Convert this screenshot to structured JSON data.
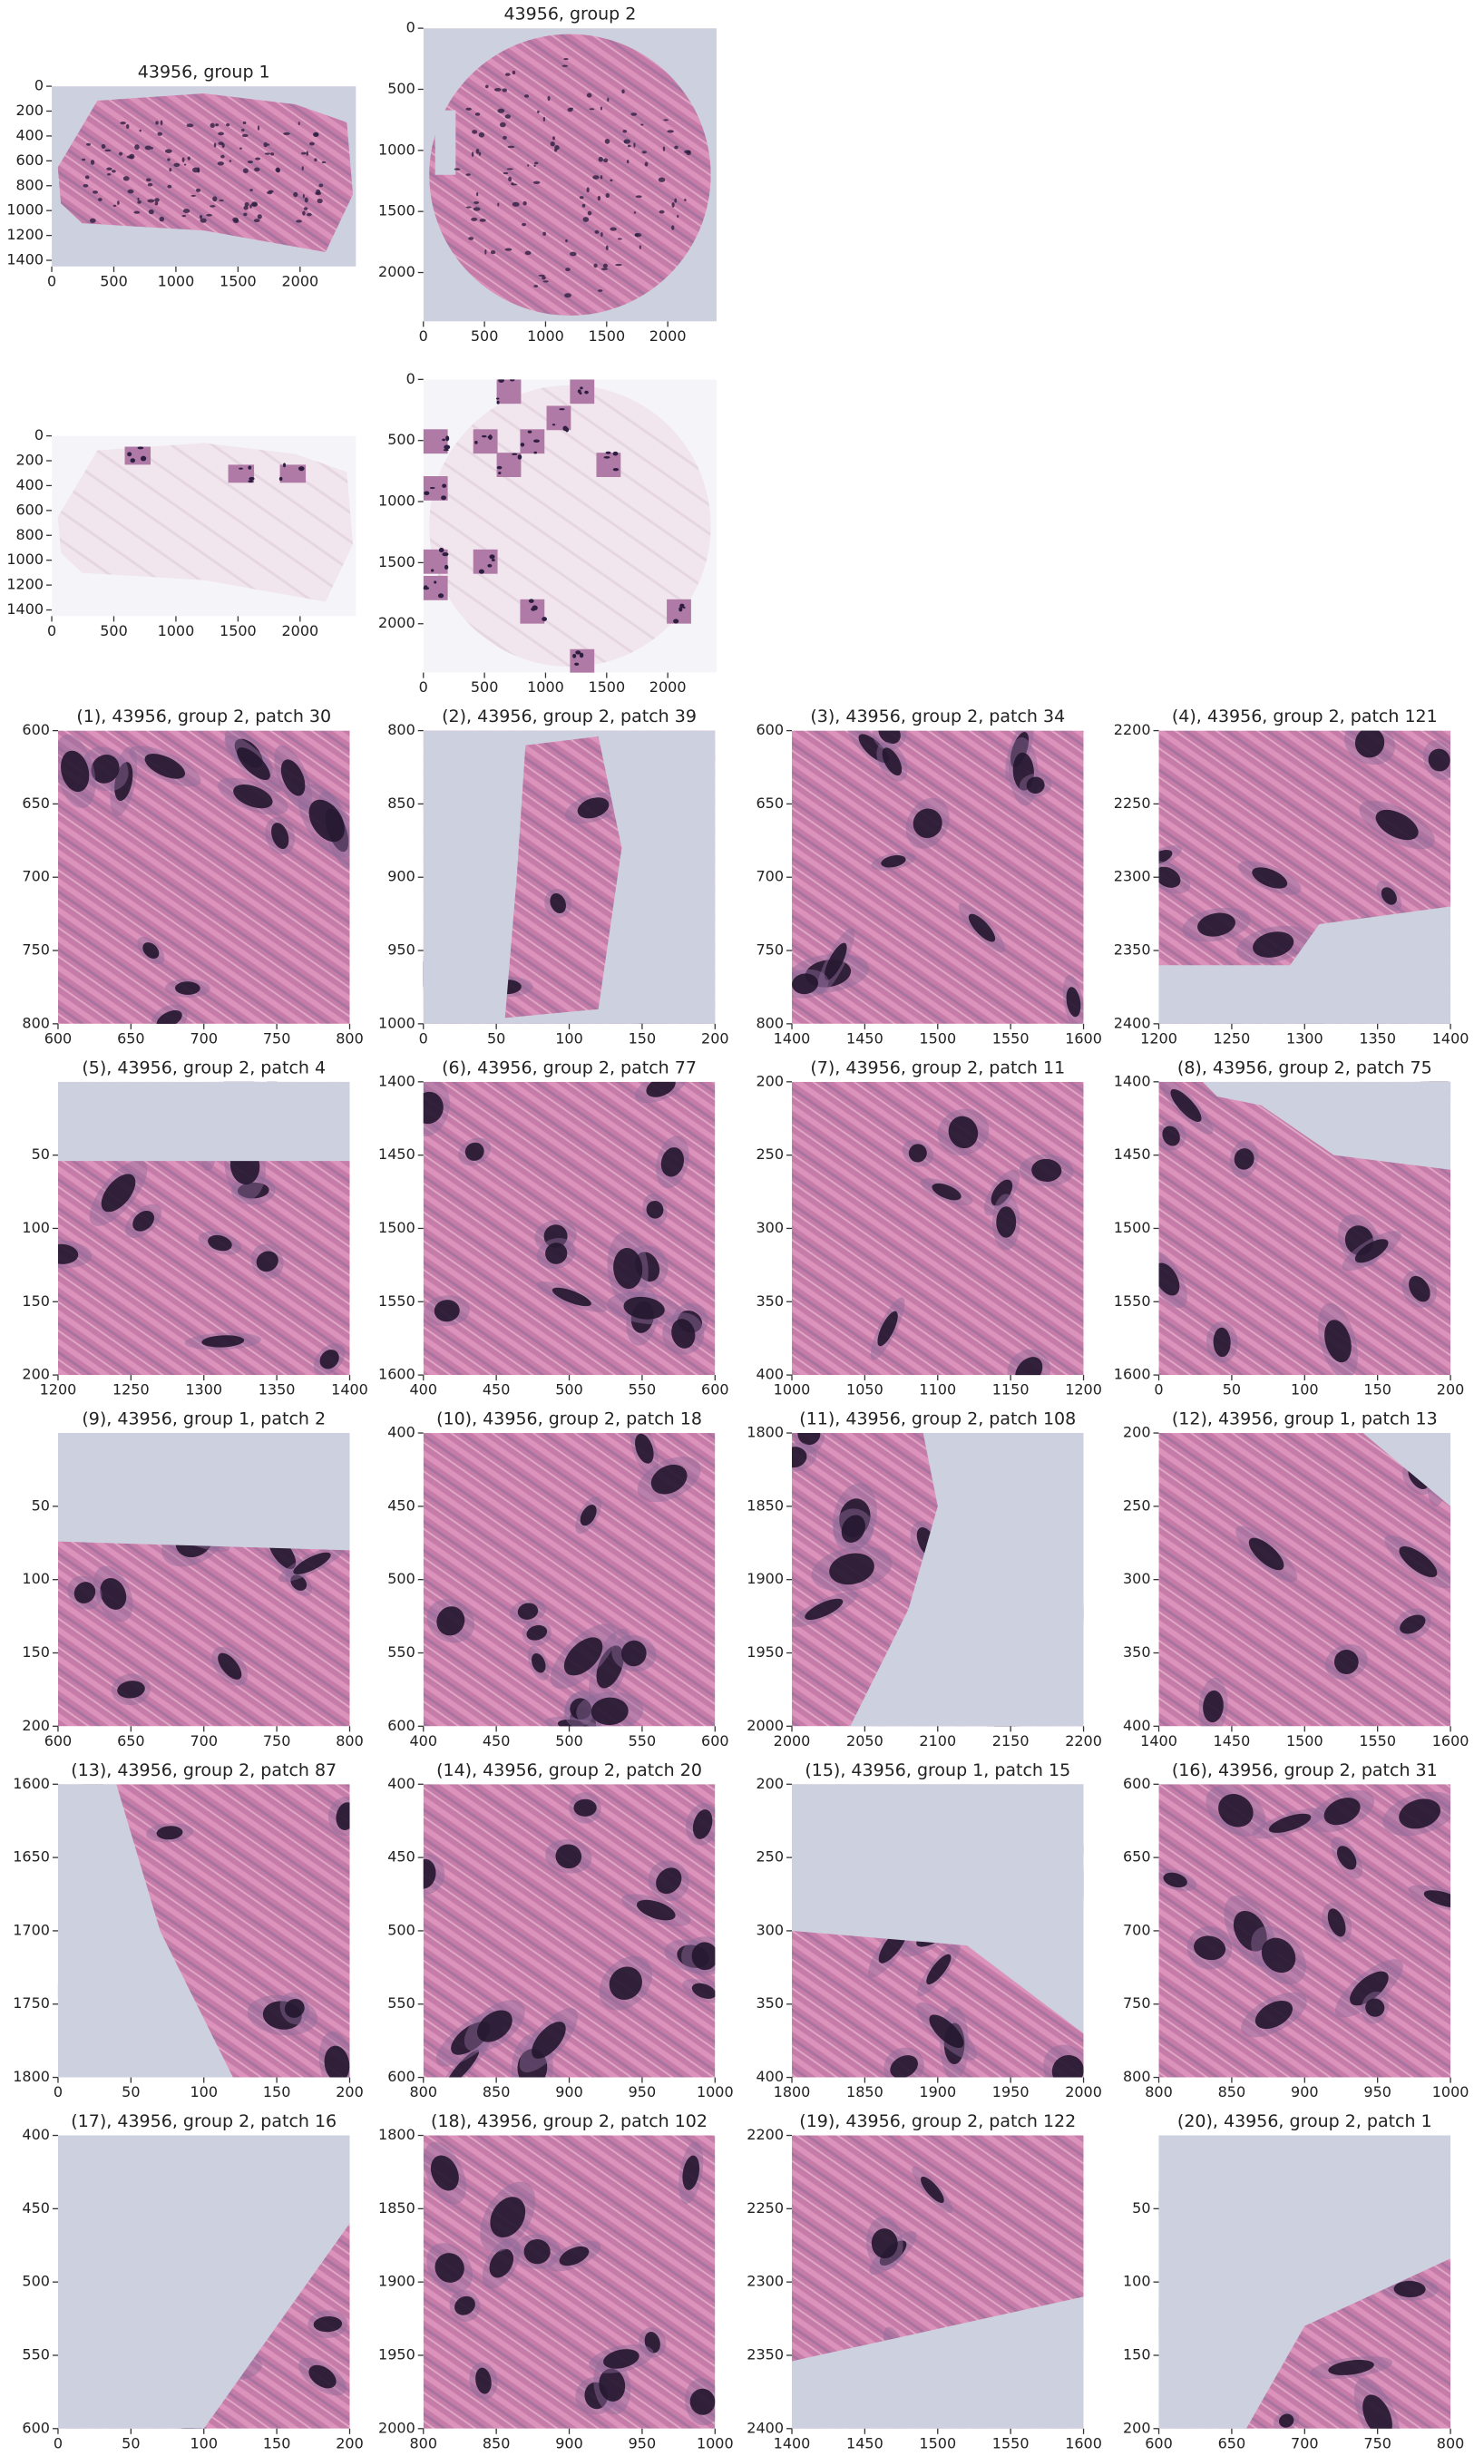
{
  "chart_data": [
    {
      "type": "image",
      "title": "43956, group 1",
      "xlim": [
        0,
        2450
      ],
      "ylim": [
        1450,
        0
      ],
      "xticks": [
        0,
        500,
        1000,
        1500,
        2000
      ],
      "yticks": [
        0,
        200,
        400,
        600,
        800,
        1000,
        1200,
        1400
      ]
    },
    {
      "type": "image",
      "title": "43956, group 2",
      "xlim": [
        0,
        2400
      ],
      "ylim": [
        2400,
        0
      ],
      "xticks": [
        0,
        500,
        1000,
        1500,
        2000
      ],
      "yticks": [
        0,
        500,
        1000,
        1500,
        2000
      ]
    },
    {
      "type": "image",
      "xlim": [
        0,
        2450
      ],
      "ylim": [
        1450,
        0
      ],
      "xticks": [
        0,
        500,
        1000,
        1500,
        2000
      ],
      "yticks": [
        0,
        200,
        400,
        600,
        800,
        1000,
        1200,
        1400
      ]
    },
    {
      "type": "image",
      "xlim": [
        0,
        2400
      ],
      "ylim": [
        2400,
        0
      ],
      "xticks": [
        0,
        500,
        1000,
        1500,
        2000
      ],
      "yticks": [
        0,
        500,
        1000,
        1500,
        2000
      ]
    },
    {
      "type": "image",
      "title": "(1), 43956, group 2, patch 30",
      "xlim": [
        600,
        800
      ],
      "ylim": [
        800,
        600
      ],
      "xticks": [
        600,
        650,
        700,
        750,
        800
      ],
      "yticks": [
        600,
        650,
        700,
        750,
        800
      ]
    },
    {
      "type": "image",
      "title": "(2), 43956, group 2, patch 39",
      "xlim": [
        0,
        200
      ],
      "ylim": [
        1000,
        800
      ],
      "xticks": [
        0,
        50,
        100,
        150,
        200
      ],
      "yticks": [
        800,
        850,
        900,
        950,
        1000
      ]
    },
    {
      "type": "image",
      "title": "(3), 43956, group 2, patch 34",
      "xlim": [
        1400,
        1600
      ],
      "ylim": [
        800,
        600
      ],
      "xticks": [
        1400,
        1450,
        1500,
        1550,
        1600
      ],
      "yticks": [
        600,
        650,
        700,
        750,
        800
      ]
    },
    {
      "type": "image",
      "title": "(4), 43956, group 2, patch 121",
      "xlim": [
        1200,
        1400
      ],
      "ylim": [
        2400,
        2200
      ],
      "xticks": [
        1200,
        1250,
        1300,
        1350,
        1400
      ],
      "yticks": [
        2200,
        2250,
        2300,
        2350,
        2400
      ]
    },
    {
      "type": "image",
      "title": "(5), 43956, group 2, patch 4",
      "xlim": [
        1200,
        1400
      ],
      "ylim": [
        200,
        0
      ],
      "xticks": [
        1200,
        1250,
        1300,
        1350,
        1400
      ],
      "yticks": [
        50,
        100,
        150,
        200
      ]
    },
    {
      "type": "image",
      "title": "(6), 43956, group 2, patch 77",
      "xlim": [
        400,
        600
      ],
      "ylim": [
        1600,
        1400
      ],
      "xticks": [
        400,
        450,
        500,
        550,
        600
      ],
      "yticks": [
        1400,
        1450,
        1500,
        1550,
        1600
      ]
    },
    {
      "type": "image",
      "title": "(7), 43956, group 2, patch 11",
      "xlim": [
        1000,
        1200
      ],
      "ylim": [
        400,
        200
      ],
      "xticks": [
        1000,
        1050,
        1100,
        1150,
        1200
      ],
      "yticks": [
        200,
        250,
        300,
        350,
        400
      ]
    },
    {
      "type": "image",
      "title": "(8), 43956, group 2, patch 75",
      "xlim": [
        0,
        200
      ],
      "ylim": [
        1600,
        1400
      ],
      "xticks": [
        0,
        50,
        100,
        150,
        200
      ],
      "yticks": [
        1400,
        1450,
        1500,
        1550,
        1600
      ]
    },
    {
      "type": "image",
      "title": "(9), 43956, group 1, patch 2",
      "xlim": [
        600,
        800
      ],
      "ylim": [
        200,
        0
      ],
      "xticks": [
        600,
        650,
        700,
        750,
        800
      ],
      "yticks": [
        50,
        100,
        150,
        200
      ]
    },
    {
      "type": "image",
      "title": "(10), 43956, group 2, patch 18",
      "xlim": [
        400,
        600
      ],
      "ylim": [
        600,
        400
      ],
      "xticks": [
        400,
        450,
        500,
        550,
        600
      ],
      "yticks": [
        400,
        450,
        500,
        550,
        600
      ]
    },
    {
      "type": "image",
      "title": "(11), 43956, group 2, patch 108",
      "xlim": [
        2000,
        2200
      ],
      "ylim": [
        2000,
        1800
      ],
      "xticks": [
        2000,
        2050,
        2100,
        2150,
        2200
      ],
      "yticks": [
        1800,
        1850,
        1900,
        1950,
        2000
      ]
    },
    {
      "type": "image",
      "title": "(12), 43956, group 1, patch 13",
      "xlim": [
        1400,
        1600
      ],
      "ylim": [
        400,
        200
      ],
      "xticks": [
        1400,
        1450,
        1500,
        1550,
        1600
      ],
      "yticks": [
        200,
        250,
        300,
        350,
        400
      ]
    },
    {
      "type": "image",
      "title": "(13), 43956, group 2, patch 87",
      "xlim": [
        0,
        200
      ],
      "ylim": [
        1800,
        1600
      ],
      "xticks": [
        0,
        50,
        100,
        150,
        200
      ],
      "yticks": [
        1600,
        1650,
        1700,
        1750,
        1800
      ]
    },
    {
      "type": "image",
      "title": "(14), 43956, group 2, patch 20",
      "xlim": [
        800,
        1000
      ],
      "ylim": [
        600,
        400
      ],
      "xticks": [
        800,
        850,
        900,
        950,
        1000
      ],
      "yticks": [
        400,
        450,
        500,
        550,
        600
      ]
    },
    {
      "type": "image",
      "title": "(15), 43956, group 1, patch 15",
      "xlim": [
        1800,
        2000
      ],
      "ylim": [
        400,
        200
      ],
      "xticks": [
        1800,
        1850,
        1900,
        1950,
        2000
      ],
      "yticks": [
        200,
        250,
        300,
        350,
        400
      ]
    },
    {
      "type": "image",
      "title": "(16), 43956, group 2, patch 31",
      "xlim": [
        800,
        1000
      ],
      "ylim": [
        800,
        600
      ],
      "xticks": [
        800,
        850,
        900,
        950,
        1000
      ],
      "yticks": [
        600,
        650,
        700,
        750,
        800
      ]
    },
    {
      "type": "image",
      "title": "(17), 43956, group 2, patch 16",
      "xlim": [
        0,
        200
      ],
      "ylim": [
        600,
        400
      ],
      "xticks": [
        0,
        50,
        100,
        150,
        200
      ],
      "yticks": [
        400,
        450,
        500,
        550,
        600
      ]
    },
    {
      "type": "image",
      "title": "(18), 43956, group 2, patch 102",
      "xlim": [
        800,
        1000
      ],
      "ylim": [
        2000,
        1800
      ],
      "xticks": [
        800,
        850,
        900,
        950,
        1000
      ],
      "yticks": [
        1800,
        1850,
        1900,
        1950,
        2000
      ]
    },
    {
      "type": "image",
      "title": "(19), 43956, group 2, patch 122",
      "xlim": [
        1400,
        1600
      ],
      "ylim": [
        2400,
        2200
      ],
      "xticks": [
        1400,
        1450,
        1500,
        1550,
        1600
      ],
      "yticks": [
        2200,
        2250,
        2300,
        2350,
        2400
      ]
    },
    {
      "type": "image",
      "title": "(20), 43956, group 2, patch 1",
      "xlim": [
        600,
        800
      ],
      "ylim": [
        200,
        0
      ],
      "xticks": [
        600,
        650,
        700,
        750,
        800
      ],
      "yticks": [
        50,
        100,
        150,
        200
      ]
    }
  ]
}
